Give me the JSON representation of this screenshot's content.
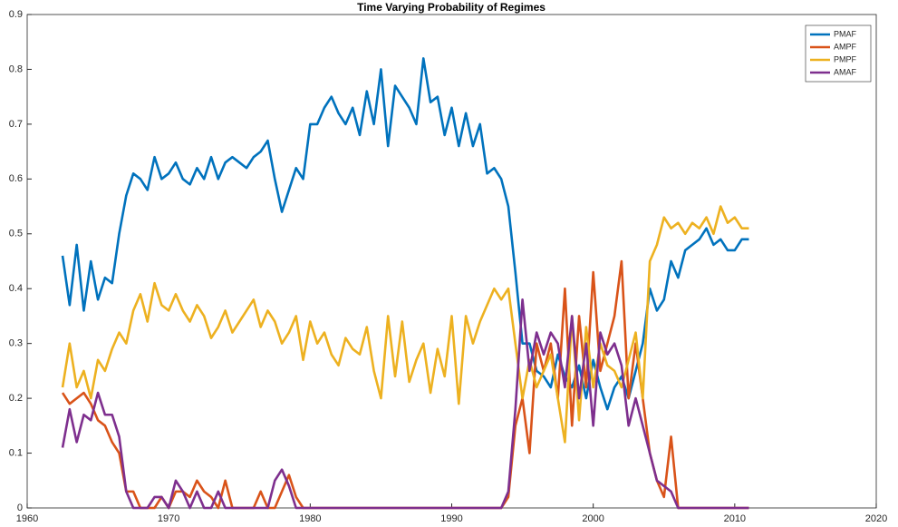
{
  "chart_data": {
    "type": "line",
    "title": "Time Varying Probability of Regimes",
    "x": [
      1962.5,
      1963,
      1963.5,
      1964,
      1964.5,
      1965,
      1965.5,
      1966,
      1966.5,
      1967,
      1967.5,
      1968,
      1968.5,
      1969,
      1969.5,
      1970,
      1970.5,
      1971,
      1971.5,
      1972,
      1972.5,
      1973,
      1973.5,
      1974,
      1974.5,
      1975,
      1975.5,
      1976,
      1976.5,
      1977,
      1977.5,
      1978,
      1978.5,
      1979,
      1979.5,
      1980,
      1980.5,
      1981,
      1981.5,
      1982,
      1982.5,
      1983,
      1983.5,
      1984,
      1984.5,
      1985,
      1985.5,
      1986,
      1986.5,
      1987,
      1987.5,
      1988,
      1988.5,
      1989,
      1989.5,
      1990,
      1990.5,
      1991,
      1991.5,
      1992,
      1992.5,
      1993,
      1993.5,
      1994,
      1994.5,
      1995,
      1995.5,
      1996,
      1996.5,
      1997,
      1997.5,
      1998,
      1998.5,
      1999,
      1999.5,
      2000,
      2000.5,
      2001,
      2001.5,
      2002,
      2002.5,
      2003,
      2003.5,
      2004,
      2004.5,
      2005,
      2005.5,
      2006,
      2006.5,
      2007,
      2007.5,
      2008,
      2008.5,
      2009,
      2009.5,
      2010,
      2010.5,
      2011
    ],
    "series": [
      {
        "name": "PMAF",
        "color": "#0072BD",
        "values": [
          0.46,
          0.37,
          0.48,
          0.36,
          0.45,
          0.38,
          0.42,
          0.41,
          0.5,
          0.57,
          0.61,
          0.6,
          0.58,
          0.64,
          0.6,
          0.61,
          0.63,
          0.6,
          0.59,
          0.62,
          0.6,
          0.64,
          0.6,
          0.63,
          0.64,
          0.63,
          0.62,
          0.64,
          0.65,
          0.67,
          0.6,
          0.54,
          0.58,
          0.62,
          0.6,
          0.7,
          0.7,
          0.73,
          0.75,
          0.72,
          0.7,
          0.73,
          0.68,
          0.76,
          0.7,
          0.8,
          0.66,
          0.77,
          0.75,
          0.73,
          0.7,
          0.82,
          0.74,
          0.75,
          0.68,
          0.73,
          0.66,
          0.72,
          0.66,
          0.7,
          0.61,
          0.62,
          0.6,
          0.55,
          0.43,
          0.3,
          0.3,
          0.25,
          0.24,
          0.22,
          0.28,
          0.24,
          0.22,
          0.26,
          0.2,
          0.27,
          0.22,
          0.18,
          0.22,
          0.24,
          0.2,
          0.25,
          0.3,
          0.4,
          0.36,
          0.38,
          0.45,
          0.42,
          0.47,
          0.48,
          0.49,
          0.51,
          0.48,
          0.49,
          0.47,
          0.47,
          0.49,
          0.49
        ]
      },
      {
        "name": "AMPF",
        "color": "#D95319",
        "values": [
          0.21,
          0.19,
          0.2,
          0.21,
          0.19,
          0.16,
          0.15,
          0.12,
          0.1,
          0.03,
          0.03,
          0,
          0,
          0,
          0.02,
          0,
          0.03,
          0.03,
          0.02,
          0.05,
          0.03,
          0.02,
          0,
          0.05,
          0,
          0,
          0,
          0,
          0.03,
          0,
          0,
          0.03,
          0.06,
          0.02,
          0,
          0,
          0,
          0,
          0,
          0,
          0,
          0,
          0,
          0,
          0,
          0,
          0,
          0,
          0,
          0,
          0,
          0,
          0,
          0,
          0,
          0,
          0,
          0,
          0,
          0,
          0,
          0,
          0,
          0.02,
          0.15,
          0.2,
          0.1,
          0.3,
          0.25,
          0.3,
          0.2,
          0.4,
          0.15,
          0.35,
          0.22,
          0.43,
          0.25,
          0.3,
          0.35,
          0.45,
          0.2,
          0.3,
          0.2,
          0.1,
          0.05,
          0.02,
          0.13,
          0,
          0,
          0,
          0,
          0,
          0,
          0,
          0,
          0,
          0,
          0
        ]
      },
      {
        "name": "PMPF",
        "color": "#EDB120",
        "values": [
          0.22,
          0.3,
          0.22,
          0.25,
          0.2,
          0.27,
          0.25,
          0.29,
          0.32,
          0.3,
          0.36,
          0.39,
          0.34,
          0.41,
          0.37,
          0.36,
          0.39,
          0.36,
          0.34,
          0.37,
          0.35,
          0.31,
          0.33,
          0.36,
          0.32,
          0.34,
          0.36,
          0.38,
          0.33,
          0.36,
          0.34,
          0.3,
          0.32,
          0.35,
          0.27,
          0.34,
          0.3,
          0.32,
          0.28,
          0.26,
          0.31,
          0.29,
          0.28,
          0.33,
          0.25,
          0.2,
          0.35,
          0.24,
          0.34,
          0.23,
          0.27,
          0.3,
          0.21,
          0.29,
          0.24,
          0.35,
          0.19,
          0.35,
          0.3,
          0.34,
          0.37,
          0.4,
          0.38,
          0.4,
          0.3,
          0.2,
          0.27,
          0.22,
          0.25,
          0.28,
          0.2,
          0.12,
          0.35,
          0.16,
          0.33,
          0.22,
          0.3,
          0.26,
          0.25,
          0.22,
          0.27,
          0.32,
          0.2,
          0.45,
          0.48,
          0.53,
          0.51,
          0.52,
          0.5,
          0.52,
          0.51,
          0.53,
          0.5,
          0.55,
          0.52,
          0.53,
          0.51,
          0.51
        ]
      },
      {
        "name": "AMAF",
        "color": "#7E2F8E",
        "values": [
          0.11,
          0.18,
          0.12,
          0.17,
          0.16,
          0.21,
          0.17,
          0.17,
          0.13,
          0.03,
          0,
          0,
          0,
          0.02,
          0.02,
          0,
          0.05,
          0.03,
          0,
          0.03,
          0,
          0,
          0.03,
          0,
          0,
          0,
          0,
          0,
          0,
          0,
          0.05,
          0.07,
          0.04,
          0,
          0,
          0,
          0,
          0,
          0,
          0,
          0,
          0,
          0,
          0,
          0,
          0,
          0,
          0,
          0,
          0,
          0,
          0,
          0,
          0,
          0,
          0,
          0,
          0,
          0,
          0,
          0,
          0,
          0,
          0.03,
          0.18,
          0.38,
          0.25,
          0.32,
          0.28,
          0.32,
          0.3,
          0.22,
          0.35,
          0.2,
          0.3,
          0.15,
          0.32,
          0.28,
          0.3,
          0.26,
          0.15,
          0.2,
          0.15,
          0.1,
          0.05,
          0.04,
          0.03,
          0,
          0,
          0,
          0,
          0,
          0,
          0,
          0,
          0,
          0,
          0
        ]
      }
    ],
    "xlim": [
      1960,
      2020
    ],
    "xticks": [
      1960,
      1970,
      1980,
      1990,
      2000,
      2010,
      2020
    ],
    "ylim": [
      0,
      0.9
    ],
    "yticks": [
      0,
      0.1,
      0.2,
      0.3,
      0.4,
      0.5,
      0.6,
      0.7,
      0.8,
      0.9
    ],
    "grid": false,
    "legend": "top-right"
  }
}
